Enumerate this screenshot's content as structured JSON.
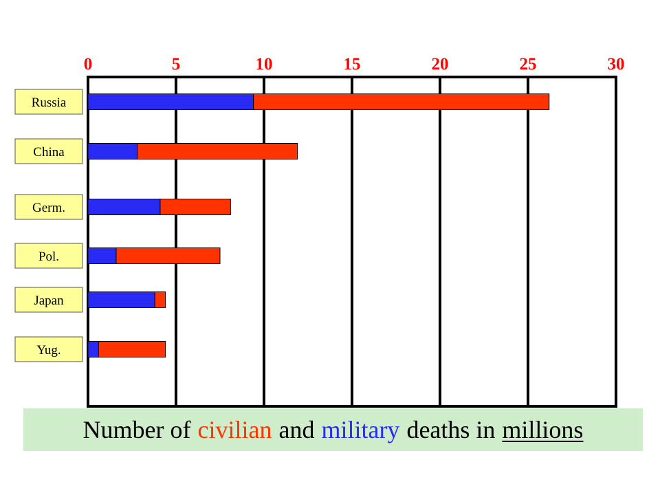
{
  "chart_data": {
    "type": "bar",
    "orientation": "horizontal",
    "stacked": true,
    "categories": [
      "Russia",
      "China",
      "Germ.",
      "Pol.",
      "Japan",
      "Yug."
    ],
    "series": [
      {
        "key": "military",
        "color": "#2a2af5",
        "values": [
          9.4,
          2.8,
          4.1,
          1.6,
          3.8,
          0.6
        ]
      },
      {
        "key": "civilian",
        "color": "#ff3300",
        "values": [
          16.8,
          9.1,
          4.0,
          5.9,
          0.6,
          3.8
        ]
      }
    ],
    "xlim": [
      0,
      30
    ],
    "xticks": [
      "0",
      "5",
      "10",
      "15",
      "20",
      "25",
      "30"
    ],
    "grid": true,
    "tick_color": "#ff0000",
    "label_box_color": "#ffff99"
  },
  "caption": {
    "part1": "Number of",
    "civilian": "civilian",
    "part2": "and",
    "military": "military",
    "part3": "deaths in",
    "units": "millions",
    "civilian_color": "#ff3300",
    "military_color": "#2a2af5",
    "background": "#cfeccb"
  }
}
